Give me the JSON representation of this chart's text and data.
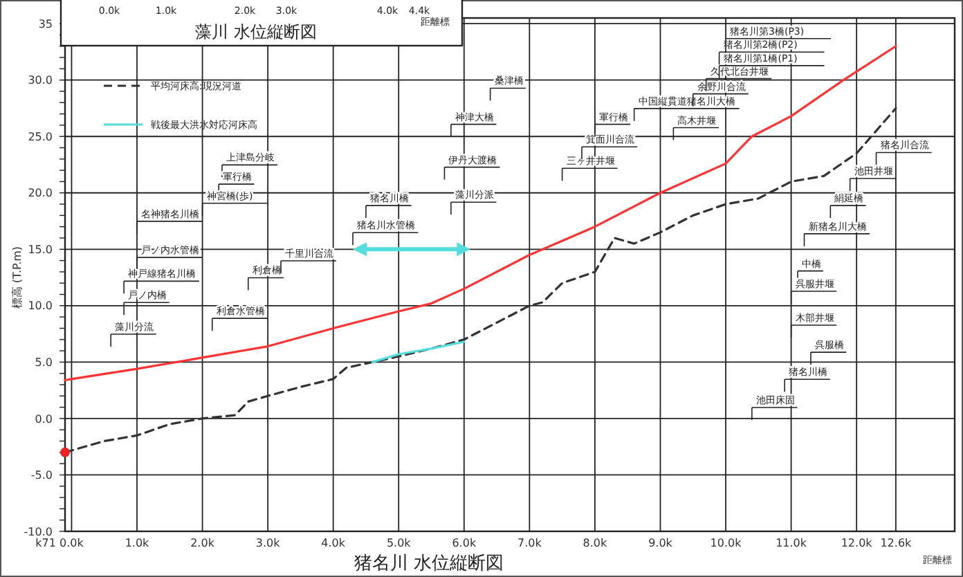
{
  "chart_data": {
    "type": "line",
    "xlabel": "猪名川 水位縦断図",
    "ylabel": "標高 (T.P.m)",
    "xlim": [
      -0.1,
      13.5
    ],
    "xticks": [
      {
        "value": 0,
        "label": "0.0k"
      },
      {
        "value": 1,
        "label": "1.0k"
      },
      {
        "value": 2,
        "label": "2.0k"
      },
      {
        "value": 3,
        "label": "3.0k"
      },
      {
        "value": 4,
        "label": "4.0k"
      },
      {
        "value": 5,
        "label": "5.0k"
      },
      {
        "value": 6,
        "label": "6.0k"
      },
      {
        "value": 7,
        "label": "7.0k"
      },
      {
        "value": 8,
        "label": "8.0k"
      },
      {
        "value": 9,
        "label": "9.0k"
      },
      {
        "value": 10,
        "label": "10.0k"
      },
      {
        "value": 11,
        "label": "11.0k"
      },
      {
        "value": 12,
        "label": "12.0k"
      },
      {
        "value": 12.6,
        "label": "12.6k"
      }
    ],
    "ylim": [
      -10,
      35.5
    ],
    "yticks": [
      {
        "value": -10,
        "label": "-10.0"
      },
      {
        "value": -5,
        "label": "-5.0"
      },
      {
        "value": 0,
        "label": "0.0"
      },
      {
        "value": 5,
        "label": "5.0"
      },
      {
        "value": 10,
        "label": "10.0"
      },
      {
        "value": 15,
        "label": "15.0"
      },
      {
        "value": 20,
        "label": "20.0"
      },
      {
        "value": 25,
        "label": "25.0"
      },
      {
        "value": 30,
        "label": "30.0"
      },
      {
        "value": 35,
        "label": "35"
      }
    ],
    "grid": true,
    "legend": "top left",
    "series": [
      {
        "color": "#ff3333",
        "line_style": "solid",
        "x": [
          -0.1,
          0,
          1,
          2,
          3,
          4,
          5,
          5.5,
          6,
          7,
          8,
          9,
          10,
          10.4,
          11,
          11.8,
          12.6
        ],
        "values": [
          3.4,
          3.5,
          4.4,
          5.4,
          6.4,
          8,
          9.5,
          10.2,
          11.5,
          14.5,
          17,
          20,
          22.6,
          25,
          26.8,
          30,
          33
        ]
      },
      {
        "name": "平均河床高:現況河道",
        "color": "#333333",
        "line_style": "dashed",
        "x": [
          -0.1,
          0.5,
          1,
          1.5,
          2,
          2.5,
          2.7,
          3,
          3.5,
          4,
          4.2,
          4.6,
          5,
          5.5,
          6,
          6.5,
          7,
          7.2,
          7.5,
          8,
          8.3,
          8.6,
          9,
          9.5,
          10,
          10.5,
          11,
          11.5,
          12,
          12.6
        ],
        "values": [
          -3,
          -2,
          -1.5,
          -0.5,
          0,
          0.3,
          1.5,
          2,
          2.8,
          3.5,
          4.5,
          5,
          5.5,
          6.2,
          7,
          8.5,
          10,
          10.3,
          12,
          13,
          16,
          15.5,
          16.5,
          18,
          19,
          19.5,
          21,
          21.5,
          23.5,
          27.5
        ]
      },
      {
        "name": "戦後最大洪水対応河床高",
        "color": "#55dddd",
        "line_style": "solid",
        "x": [
          4.6,
          5,
          5.5,
          6
        ],
        "values": [
          5,
          5.7,
          6.2,
          6.8
        ]
      },
      {
        "type": "scatter",
        "color": "#ee2222",
        "marker": "circle",
        "x": [
          -0.1
        ],
        "values": [
          -3
        ]
      }
    ],
    "annotations": [
      "距離標",
      "距離標",
      "藻川 水位縦断図",
      "k71",
      "0.0k",
      "1.0k",
      "2.0k",
      "3.0k",
      "4.0k",
      "4.4k",
      "上津島分岐",
      "軍行橋",
      "神宮橋(歩)",
      "名神猪名川橋",
      "戸ノ内水管橋",
      "神戸線猪名川橋",
      "戸ノ内橋",
      "藻川分流",
      "利倉橋",
      "利倉水管橋",
      "千里川合流",
      "猪名川橋",
      "猪名川水管橋",
      "藻川分派",
      "伊丹大渡橋",
      "神津大橋",
      "桑津橋",
      "三ヶ井井堰",
      "箕面川合流",
      "軍行橋",
      "中国縦貫道猪名川大橋",
      "高木井堰",
      "余野川合流",
      "久代北台井堰",
      "猪名川第1橋(P1)",
      "猪名川第2橋(P2)",
      "猪名川第3橋(P3)",
      "猪名川合流",
      "池田井堰",
      "絹延橋",
      "新猪名川大橋",
      "中橋",
      "呉服井堰",
      "木部井堰",
      "呉服橋",
      "猪名川橋",
      "池田床固"
    ]
  }
}
